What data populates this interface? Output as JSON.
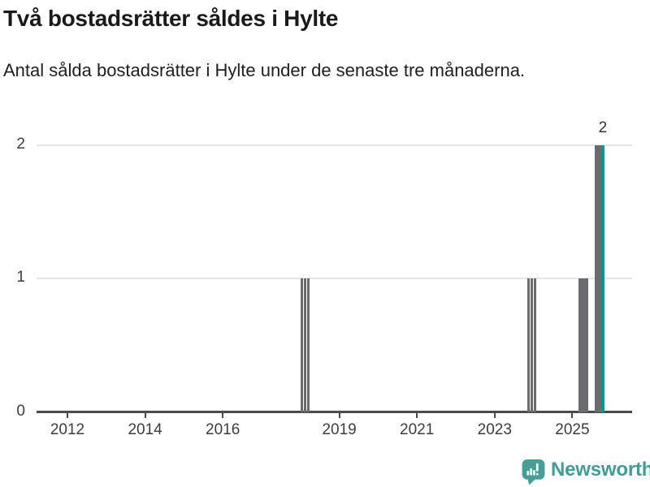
{
  "header": {
    "title": "Två bostadsrätter såldes i Hylte",
    "subtitle": "Antal sålda bostadsrätter i Hylte under de senaste tre månaderna."
  },
  "chart_data": {
    "type": "bar",
    "title": "Två bostadsrätter såldes i Hylte",
    "subtitle": "Antal sålda bostadsrätter i Hylte under de senaste tre månaderna.",
    "x_axis": {
      "ticks": [
        "2012",
        "2014",
        "2016",
        "2019",
        "2021",
        "2023",
        "2025"
      ],
      "domain_approx": [
        "2011-03",
        "2026-08"
      ],
      "unit": "år (månadsupplösning)"
    },
    "y_axis": {
      "ticks": [
        "0",
        "1",
        "2"
      ],
      "range": [
        0,
        2
      ],
      "gridlines": true
    },
    "bars": [
      {
        "date": "2018-01",
        "value": 1
      },
      {
        "date": "2018-02",
        "value": 1
      },
      {
        "date": "2018-03",
        "value": 1
      },
      {
        "date": "2023-11",
        "value": 1
      },
      {
        "date": "2023-12",
        "value": 1
      },
      {
        "date": "2024-01",
        "value": 1
      },
      {
        "date": "2025-03",
        "value": 1
      },
      {
        "date": "2025-04",
        "value": 1
      },
      {
        "date": "2025-05",
        "value": 1
      },
      {
        "date": "2025-08",
        "value": 2
      },
      {
        "date": "2025-09",
        "value": 2
      },
      {
        "date": "2025-10",
        "value": 2,
        "highlight": true
      }
    ],
    "annotation": {
      "text": "2",
      "attached_to": "2025-10"
    },
    "legend": "none",
    "colors": {
      "bar": "#6a6a6f",
      "highlight": "#009a91",
      "gridline": "#e4e4e4",
      "axis": "#4a4a4a",
      "tick_text": "#3d3d3d"
    }
  },
  "footer": {
    "brand": "Newsworthy",
    "colors": {
      "icon": "#459f97",
      "text": "#3f9d94"
    }
  }
}
